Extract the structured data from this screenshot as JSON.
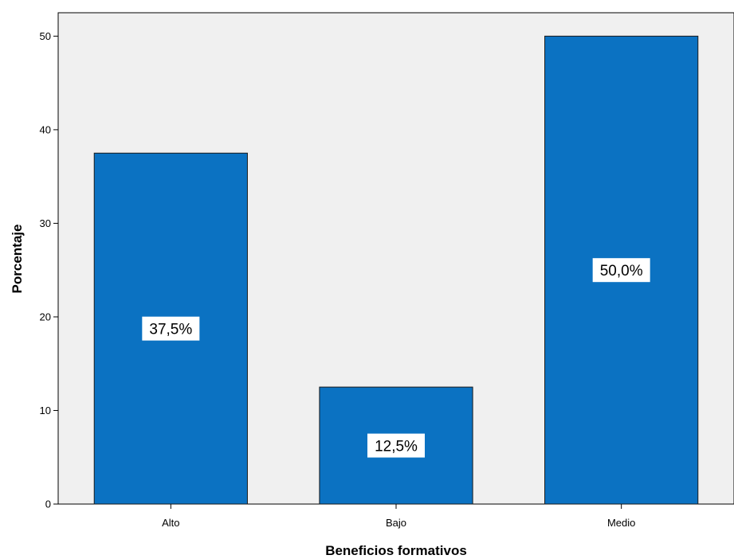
{
  "chart_data": {
    "type": "bar",
    "categories": [
      "Alto",
      "Bajo",
      "Medio"
    ],
    "values": [
      37.5,
      12.5,
      50.0
    ],
    "data_labels": [
      "37,5%",
      "12,5%",
      "50,0%"
    ],
    "title": "",
    "xlabel": "Beneficios formativos",
    "ylabel": "Porcentaje",
    "ylim": [
      0,
      52.5
    ],
    "yticks": [
      0,
      10,
      20,
      30,
      40,
      50
    ],
    "ytick_labels": [
      "0",
      "10",
      "20",
      "30",
      "40",
      "50"
    ],
    "grid": false,
    "legend": "none",
    "colors": {
      "bar_fill": "#0b72c2",
      "bar_stroke": "#1a1a1a",
      "plot_background": "#f0f0f0",
      "label_background": "#ffffff"
    }
  }
}
